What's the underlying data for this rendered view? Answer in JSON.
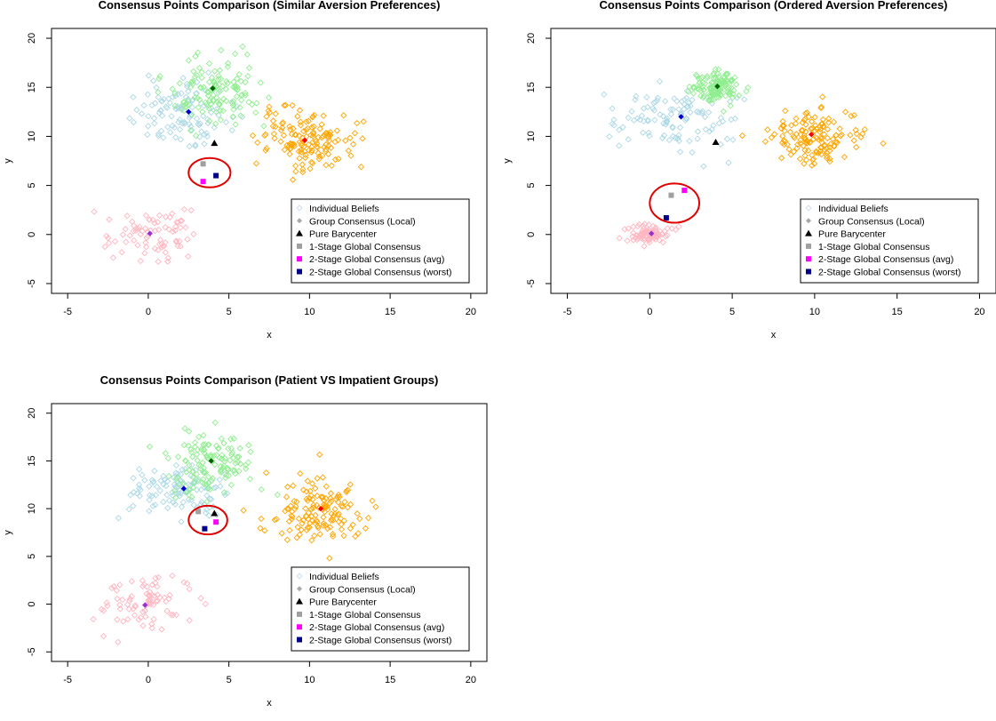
{
  "figure": {
    "axis_xlabel": "x",
    "axis_ylabel": "y",
    "xlim": [
      -6,
      21
    ],
    "ylim": [
      -6,
      21
    ],
    "xticks": [
      -5,
      0,
      5,
      10,
      15,
      20
    ],
    "yticks": [
      -5,
      0,
      5,
      10,
      15,
      20
    ],
    "legend": [
      {
        "label": "Individual Beliefs",
        "symbol": "open-diamond",
        "color": "#c7dcf0"
      },
      {
        "label": "Group Consensus (Local)",
        "symbol": "diamond",
        "color": "#a8a8a8"
      },
      {
        "label": "Pure Barycenter",
        "symbol": "triangle",
        "color": "#000000"
      },
      {
        "label": "1-Stage Global Consensus",
        "symbol": "square",
        "color": "#a0a0a0"
      },
      {
        "label": "2-Stage Global Consensus (avg)",
        "symbol": "square",
        "color": "#ff00ff"
      },
      {
        "label": "2-Stage Global Consensus (worst)",
        "symbol": "square",
        "color": "#00008b"
      }
    ],
    "colors": {
      "pink": "#ffb6c1",
      "lightblue": "#add8e6",
      "green": "#90ee90",
      "orange": "#ffa500",
      "consensus_pink": "#9932cc",
      "consensus_blue": "#0000cd",
      "consensus_green": "#006400",
      "consensus_orange": "#ff0000",
      "circle": "#e00000"
    }
  },
  "chart_data": [
    {
      "type": "scatter",
      "title": "Consensus Points Comparison (Similar Aversion Preferences)",
      "xlabel": "x",
      "ylabel": "y",
      "xlim": [
        -6,
        21
      ],
      "ylim": [
        -6,
        21
      ],
      "legend_position": "bottom-right",
      "clusters": [
        {
          "color": "pink",
          "center": [
            0,
            0
          ],
          "spread": [
            1.5,
            1.2
          ],
          "n": 80,
          "consensus": [
            0.1,
            0.1
          ],
          "consensus_color": "consensus_pink"
        },
        {
          "color": "lightblue",
          "center": [
            2.2,
            12.3
          ],
          "spread": [
            1.6,
            1.5
          ],
          "n": 110,
          "consensus": [
            2.5,
            12.5
          ],
          "consensus_color": "consensus_blue"
        },
        {
          "color": "green",
          "center": [
            4.2,
            14.5
          ],
          "spread": [
            1.4,
            1.7
          ],
          "n": 130,
          "consensus": [
            4.0,
            14.9
          ],
          "consensus_color": "consensus_green"
        },
        {
          "color": "orange",
          "center": [
            10.0,
            9.8
          ],
          "spread": [
            1.5,
            1.5
          ],
          "n": 140,
          "consensus": [
            9.7,
            9.6
          ],
          "consensus_color": "consensus_orange"
        }
      ],
      "pure_barycenter": [
        4.1,
        9.3
      ],
      "one_stage": [
        3.4,
        7.2
      ],
      "two_stage_avg": [
        3.4,
        5.4
      ],
      "two_stage_worst": [
        4.2,
        6.0
      ],
      "highlight_circle": {
        "center": [
          3.8,
          6.3
        ],
        "rx": 1.3,
        "ry": 1.5
      }
    },
    {
      "type": "scatter",
      "title": "Consensus Points Comparison (Ordered Aversion Preferences)",
      "xlabel": "x",
      "ylabel": "y",
      "xlim": [
        -6,
        21
      ],
      "ylim": [
        -6,
        21
      ],
      "legend_position": "bottom-right",
      "clusters": [
        {
          "color": "pink",
          "center": [
            0,
            0
          ],
          "spread": [
            0.6,
            0.5
          ],
          "n": 80,
          "consensus": [
            0.1,
            0.1
          ],
          "consensus_color": "consensus_pink"
        },
        {
          "color": "lightblue",
          "center": [
            1.5,
            11.8
          ],
          "spread": [
            1.8,
            1.6
          ],
          "n": 110,
          "consensus": [
            1.9,
            12.0
          ],
          "consensus_color": "consensus_blue"
        },
        {
          "color": "green",
          "center": [
            4.2,
            15.0
          ],
          "spread": [
            0.8,
            0.8
          ],
          "n": 130,
          "consensus": [
            4.1,
            15.1
          ],
          "consensus_color": "consensus_green"
        },
        {
          "color": "orange",
          "center": [
            10.0,
            10.0
          ],
          "spread": [
            1.4,
            1.4
          ],
          "n": 140,
          "consensus": [
            9.8,
            10.2
          ],
          "consensus_color": "consensus_orange"
        }
      ],
      "pure_barycenter": [
        4.0,
        9.4
      ],
      "one_stage": [
        1.3,
        4.0
      ],
      "two_stage_avg": [
        2.1,
        4.5
      ],
      "two_stage_worst": [
        1.0,
        1.7
      ],
      "highlight_circle": {
        "center": [
          1.5,
          3.2
        ],
        "rx": 1.5,
        "ry": 2.0
      }
    },
    {
      "type": "scatter",
      "title": "Consensus Points Comparison (Patient VS Impatient Groups)",
      "xlabel": "x",
      "ylabel": "y",
      "xlim": [
        -6,
        21
      ],
      "ylim": [
        -6,
        21
      ],
      "legend_position": "bottom-right",
      "clusters": [
        {
          "color": "pink",
          "center": [
            -0.2,
            0
          ],
          "spread": [
            1.4,
            1.5
          ],
          "n": 80,
          "consensus": [
            -0.2,
            -0.1
          ],
          "consensus_color": "consensus_pink"
        },
        {
          "color": "lightblue",
          "center": [
            1.8,
            11.9
          ],
          "spread": [
            1.6,
            1.5
          ],
          "n": 110,
          "consensus": [
            2.2,
            12.1
          ],
          "consensus_color": "consensus_blue"
        },
        {
          "color": "green",
          "center": [
            3.9,
            14.8
          ],
          "spread": [
            1.3,
            1.6
          ],
          "n": 130,
          "consensus": [
            3.9,
            15.0
          ],
          "consensus_color": "consensus_green"
        },
        {
          "color": "orange",
          "center": [
            10.6,
            9.9
          ],
          "spread": [
            1.5,
            1.6
          ],
          "n": 140,
          "consensus": [
            10.7,
            10.0
          ],
          "consensus_color": "consensus_orange"
        }
      ],
      "pure_barycenter": [
        4.1,
        9.5
      ],
      "one_stage": [
        3.1,
        9.7
      ],
      "two_stage_avg": [
        4.2,
        8.6
      ],
      "two_stage_worst": [
        3.5,
        7.9
      ],
      "highlight_circle": {
        "center": [
          3.7,
          8.8
        ],
        "rx": 1.2,
        "ry": 1.5
      }
    }
  ]
}
